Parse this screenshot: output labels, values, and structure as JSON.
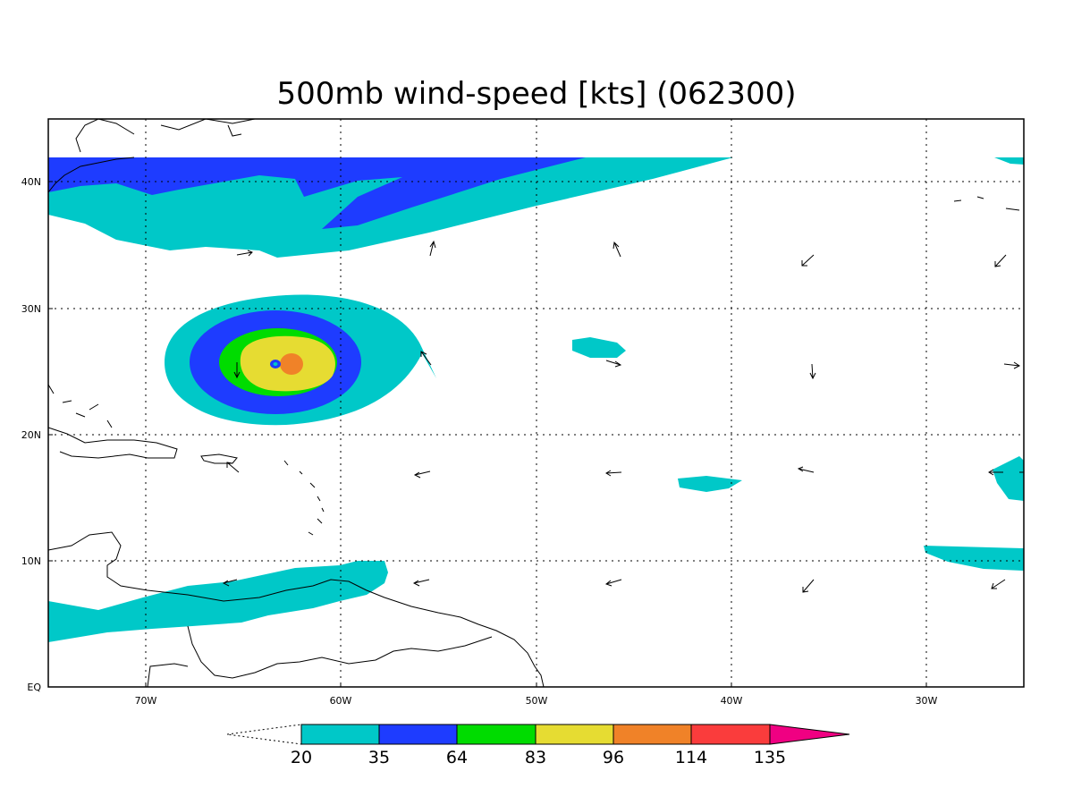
{
  "title": "500mb wind-speed [kts] (062300)",
  "x_ticks": [
    "70W",
    "60W",
    "50W",
    "40W",
    "30W"
  ],
  "y_ticks": [
    "EQ",
    "10N",
    "20N",
    "30N",
    "40N"
  ],
  "colorbar": {
    "levels": [
      "20",
      "35",
      "64",
      "83",
      "96",
      "114",
      "135"
    ],
    "colors": [
      "#00c8c8",
      "#1e3cff",
      "#00dc00",
      "#e6dc32",
      "#f08228",
      "#fa3c3c",
      "#f00082"
    ]
  },
  "colors": {
    "land": "#000000",
    "background": "#ffffff"
  }
}
